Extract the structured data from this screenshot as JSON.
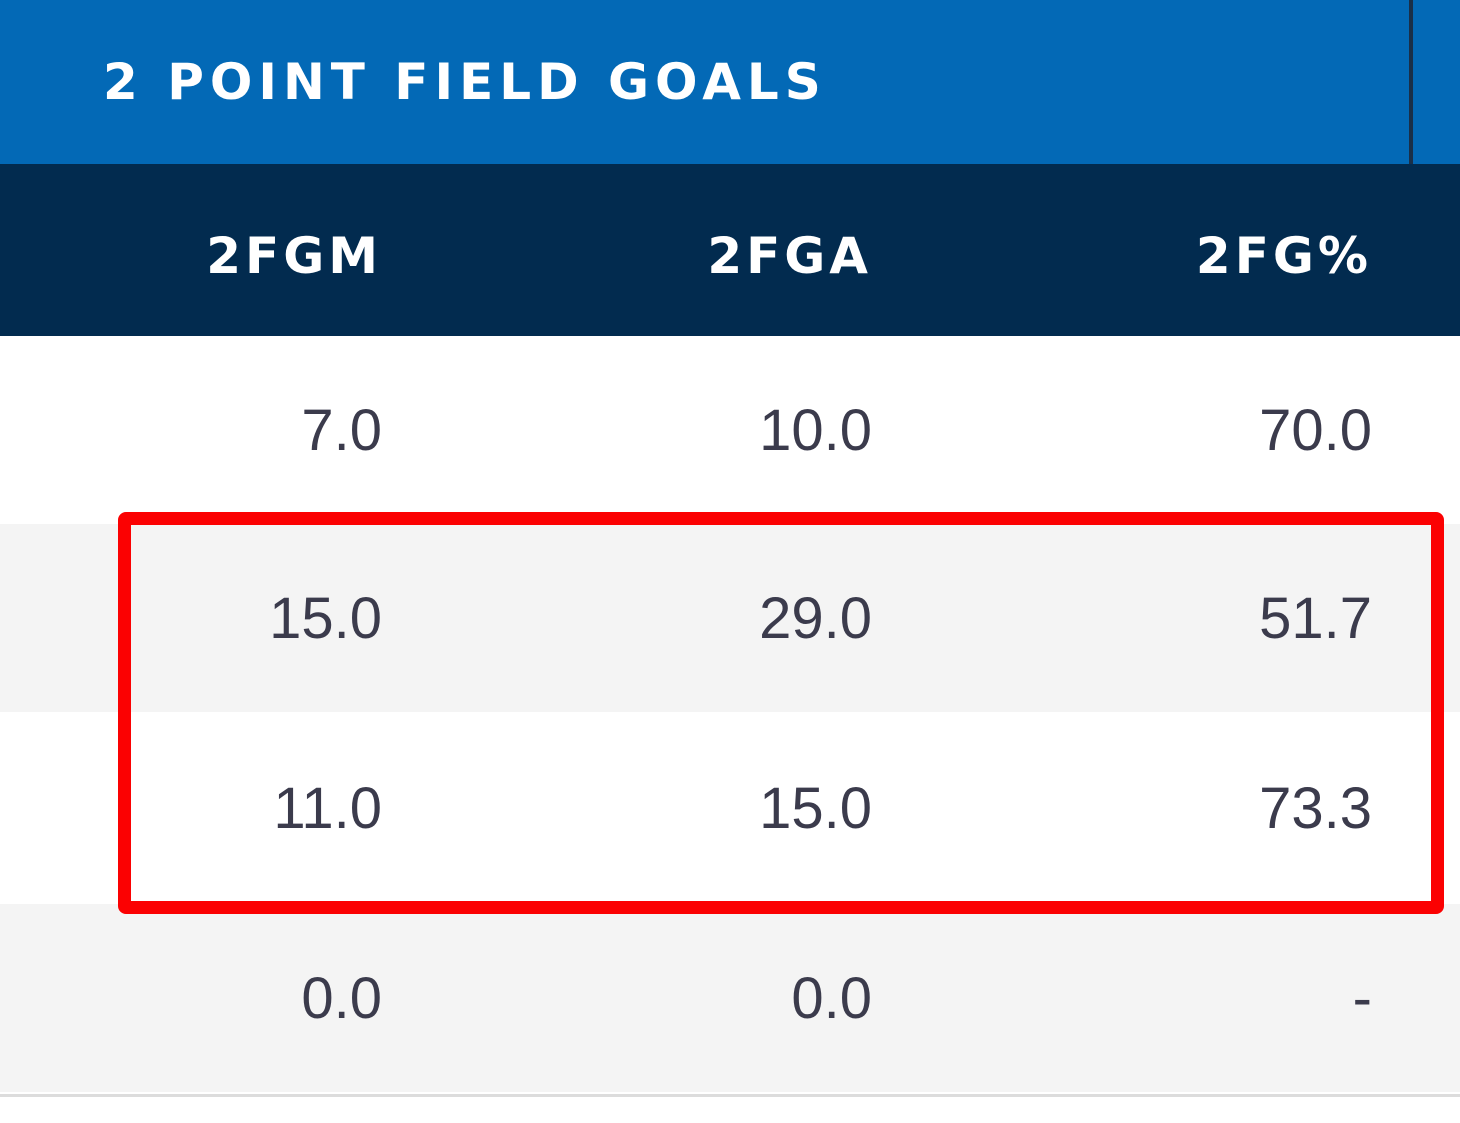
{
  "section": {
    "title": "2 POINT FIELD GOALS"
  },
  "columns": [
    "2FGM",
    "2FGA",
    "2FG%"
  ],
  "rows": [
    [
      "7.0",
      "10.0",
      "70.0"
    ],
    [
      "15.0",
      "29.0",
      "51.7"
    ],
    [
      "11.0",
      "15.0",
      "73.3"
    ],
    [
      "0.0",
      "0.0",
      "-"
    ]
  ],
  "colors": {
    "section_header_bg": "#0369b6",
    "column_header_bg": "#022b4f",
    "highlight_border": "#fb0102",
    "alt_row_bg": "#f4f4f4"
  }
}
